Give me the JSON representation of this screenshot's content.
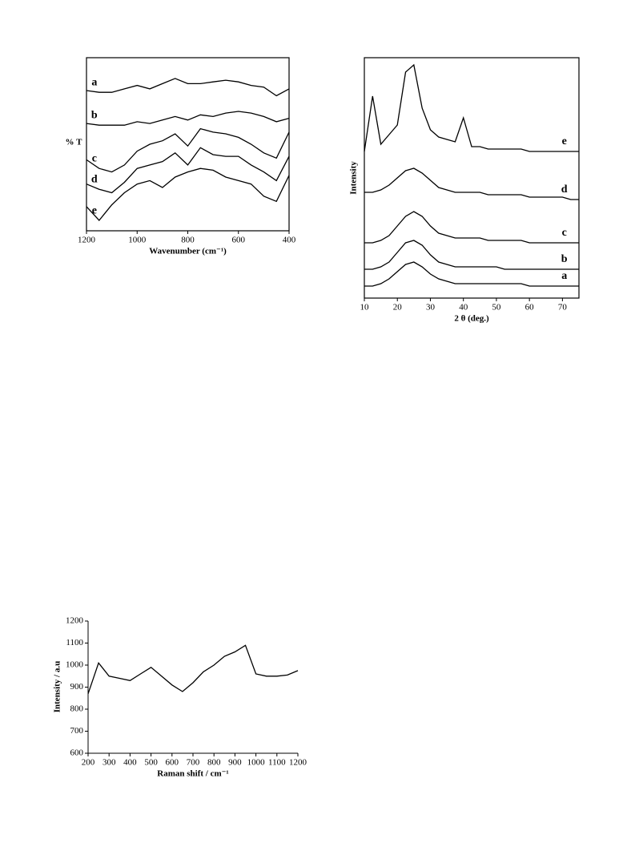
{
  "chart_data": [
    {
      "type": "line",
      "x_label": "Wavenumber (cm⁻¹)",
      "y_label": "% T",
      "x": [
        1200,
        1150,
        1100,
        1050,
        1000,
        950,
        900,
        850,
        800,
        750,
        700,
        650,
        600,
        550,
        500,
        450,
        400
      ],
      "xlim": [
        1200,
        400
      ],
      "xticks": [
        1200,
        1000,
        800,
        600,
        400
      ],
      "ylim": [
        0,
        100
      ],
      "series": [
        {
          "name": "a",
          "color": "#000",
          "values": [
            81,
            80,
            80,
            82,
            84,
            82,
            85,
            88,
            85,
            85,
            86,
            87,
            86,
            84,
            83,
            78,
            82
          ]
        },
        {
          "name": "b",
          "color": "#000",
          "values": [
            62,
            61,
            61,
            61,
            63,
            62,
            64,
            66,
            64,
            67,
            66,
            68,
            69,
            68,
            66,
            63,
            65
          ]
        },
        {
          "name": "c",
          "color": "#000",
          "values": [
            41,
            36,
            34,
            38,
            46,
            50,
            52,
            56,
            49,
            59,
            57,
            56,
            54,
            50,
            45,
            42,
            57
          ]
        },
        {
          "name": "d",
          "color": "#000",
          "values": [
            27,
            24,
            22,
            28,
            36,
            38,
            40,
            45,
            38,
            48,
            44,
            43,
            43,
            38,
            34,
            29,
            43
          ]
        },
        {
          "name": "e",
          "color": "#000",
          "values": [
            14,
            6,
            15,
            22,
            27,
            29,
            25,
            31,
            34,
            36,
            35,
            31,
            29,
            27,
            20,
            17,
            32
          ]
        }
      ]
    },
    {
      "type": "line",
      "x_label": "2 θ (deg.)",
      "y_label": "Intensity",
      "x": [
        10,
        12.5,
        15,
        17.5,
        20,
        22.5,
        25,
        27.5,
        30,
        32.5,
        35,
        37.5,
        40,
        42.5,
        45,
        47.5,
        50,
        52.5,
        55,
        57.5,
        60,
        62.5,
        65,
        67.5,
        70,
        72.5,
        75
      ],
      "xlim": [
        10,
        75
      ],
      "xticks": [
        10,
        20,
        30,
        40,
        50,
        60,
        70
      ],
      "ylim": [
        0,
        100
      ],
      "series": [
        {
          "name": "a",
          "color": "#000",
          "values": [
            5,
            5,
            6,
            8,
            11,
            14,
            15,
            13,
            10,
            8,
            7,
            6,
            6,
            6,
            6,
            6,
            6,
            6,
            6,
            6,
            5,
            5,
            5,
            5,
            5,
            5,
            5
          ]
        },
        {
          "name": "b",
          "color": "#000",
          "values": [
            12,
            12,
            13,
            15,
            19,
            23,
            24,
            22,
            18,
            15,
            14,
            13,
            13,
            13,
            13,
            13,
            13,
            12,
            12,
            12,
            12,
            12,
            12,
            12,
            12,
            12,
            12
          ]
        },
        {
          "name": "c",
          "color": "#000",
          "values": [
            23,
            23,
            24,
            26,
            30,
            34,
            36,
            34,
            30,
            27,
            26,
            25,
            25,
            25,
            25,
            24,
            24,
            24,
            24,
            24,
            23,
            23,
            23,
            23,
            23,
            23,
            23
          ]
        },
        {
          "name": "d",
          "color": "#000",
          "values": [
            44,
            44,
            45,
            47,
            50,
            53,
            54,
            52,
            49,
            46,
            45,
            44,
            44,
            44,
            44,
            43,
            43,
            43,
            43,
            43,
            42,
            42,
            42,
            42,
            42,
            41,
            41
          ]
        },
        {
          "name": "e",
          "color": "#000",
          "values": [
            61,
            84,
            64,
            68,
            72,
            94,
            97,
            79,
            70,
            67,
            66,
            65,
            75,
            63,
            63,
            62,
            62,
            62,
            62,
            62,
            61,
            61,
            61,
            61,
            61,
            61,
            61
          ]
        }
      ]
    },
    {
      "type": "line",
      "x_label": "Raman shift / cm⁻¹",
      "y_label": "Intensity / a.u",
      "x": [
        200,
        250,
        300,
        350,
        400,
        450,
        500,
        550,
        600,
        650,
        700,
        750,
        800,
        850,
        900,
        950,
        1000,
        1050,
        1100,
        1150,
        1200
      ],
      "xlim": [
        200,
        1200
      ],
      "xticks": [
        200,
        300,
        400,
        500,
        600,
        700,
        800,
        900,
        1000,
        1100,
        1200
      ],
      "ylim": [
        600,
        1200
      ],
      "yticks": [
        600,
        700,
        800,
        900,
        1000,
        1100,
        1200
      ],
      "series": [
        {
          "color": "#000",
          "values": [
            870,
            1010,
            950,
            940,
            930,
            960,
            990,
            950,
            910,
            880,
            920,
            970,
            1000,
            1040,
            1060,
            1090,
            960,
            950,
            950,
            955,
            975
          ]
        }
      ]
    }
  ]
}
